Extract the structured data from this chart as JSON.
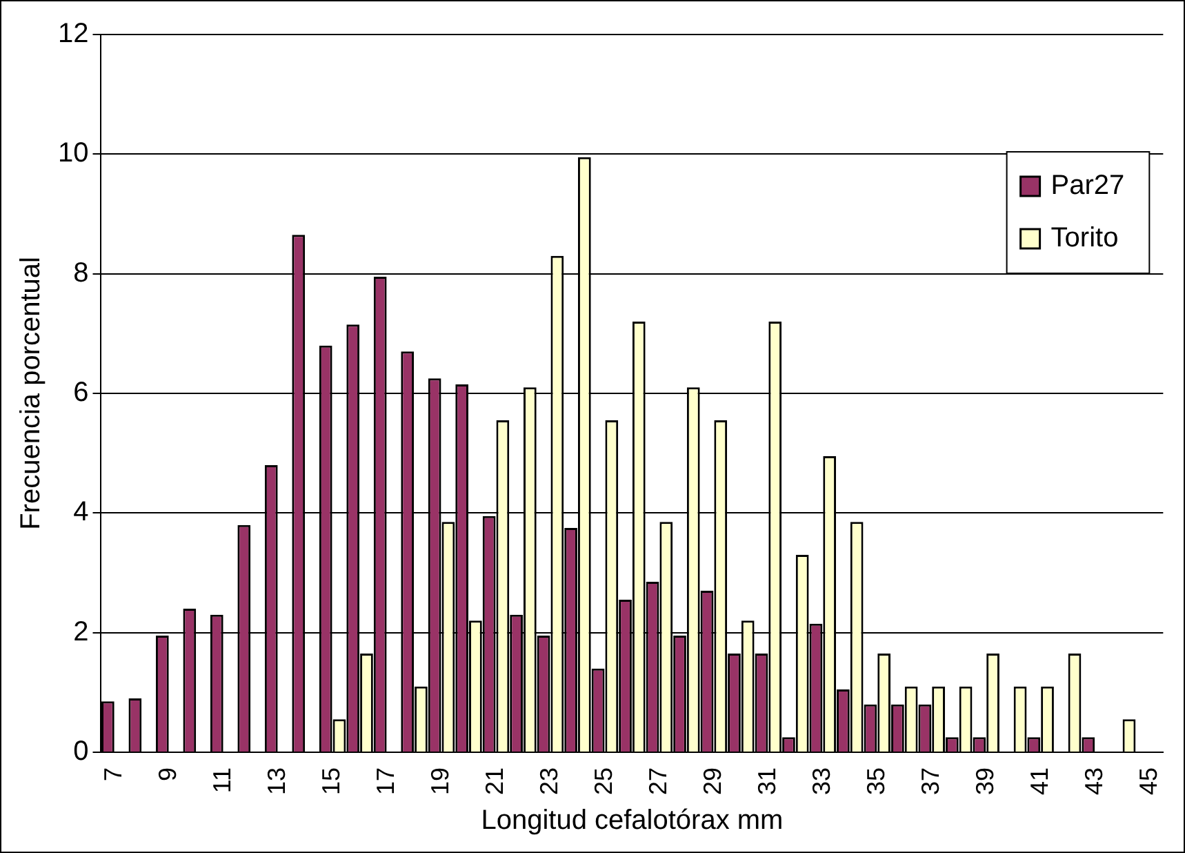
{
  "chart_data": {
    "type": "bar",
    "xlabel": "Longitud cefalotórax mm",
    "ylabel": "Frecuencia porcentual",
    "categories": [
      "7",
      null,
      "9",
      null,
      "11",
      null,
      "13",
      null,
      "15",
      null,
      "17",
      null,
      "19",
      null,
      "21",
      null,
      "23",
      null,
      "25",
      null,
      "27",
      null,
      "29",
      null,
      "31",
      null,
      "33",
      null,
      "35",
      null,
      "37",
      null,
      "39",
      null,
      "41",
      null,
      "43",
      null,
      "45"
    ],
    "series": [
      {
        "name": "Par27",
        "color": "#993366",
        "values": [
          0.85,
          0.9,
          1.95,
          2.4,
          2.3,
          3.8,
          4.8,
          8.65,
          6.8,
          7.15,
          7.95,
          6.7,
          6.25,
          6.15,
          3.95,
          2.3,
          1.95,
          3.75,
          1.4,
          2.55,
          2.85,
          1.95,
          2.7,
          1.65,
          1.65,
          0.25,
          2.15,
          1.05,
          0.8,
          0.8,
          0.8,
          0.25,
          0.25,
          0,
          0.25,
          0,
          0.25,
          0,
          0
        ]
      },
      {
        "name": "Torito",
        "color": "#ffffcc",
        "values": [
          0,
          0,
          0,
          0,
          0,
          0,
          0,
          0,
          0.55,
          1.65,
          0,
          1.1,
          3.85,
          2.2,
          5.55,
          6.1,
          8.3,
          9.95,
          5.55,
          7.2,
          3.85,
          6.1,
          5.55,
          2.2,
          7.2,
          3.3,
          4.95,
          3.85,
          1.65,
          1.1,
          1.1,
          1.1,
          1.65,
          1.1,
          1.1,
          1.65,
          0,
          0.55,
          0
        ]
      }
    ],
    "ylim": [
      0,
      12
    ],
    "yticks": [
      0,
      2,
      4,
      6,
      8,
      10,
      12
    ],
    "grid": "y",
    "legend": "top right"
  }
}
